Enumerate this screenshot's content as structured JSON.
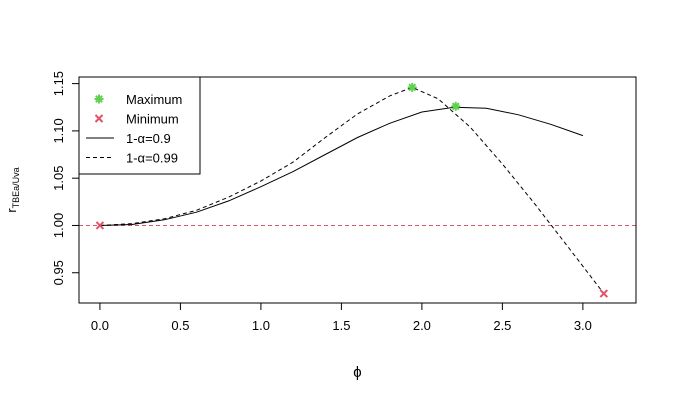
{
  "chart_data": {
    "type": "line",
    "title": "",
    "xlabel": "ϕ",
    "ylabel_main": "r",
    "ylabel_sub": "TBEa/Uva",
    "xlim": [
      -0.13,
      3.33
    ],
    "ylim": [
      0.918,
      1.157
    ],
    "xticks": [
      0.0,
      0.5,
      1.0,
      1.5,
      2.0,
      2.5,
      3.0
    ],
    "xtick_labels": [
      "0.0",
      "0.5",
      "1.0",
      "1.5",
      "2.0",
      "2.5",
      "3.0"
    ],
    "yticks": [
      0.95,
      1.0,
      1.05,
      1.1,
      1.15
    ],
    "ytick_labels": [
      "0.95",
      "1.00",
      "1.05",
      "1.10",
      "1.15"
    ],
    "reference_line": {
      "y": 1.0,
      "color": "#DF536B",
      "style": "dashed"
    },
    "series": [
      {
        "name": "1-α=0.9",
        "style": "solid",
        "color": "#000000",
        "x": [
          0.0,
          0.2,
          0.4,
          0.6,
          0.8,
          1.0,
          1.2,
          1.4,
          1.6,
          1.8,
          2.0,
          2.2,
          2.4,
          2.6,
          2.8,
          3.0
        ],
        "y": [
          1.0,
          1.001,
          1.006,
          1.014,
          1.026,
          1.041,
          1.057,
          1.075,
          1.093,
          1.108,
          1.12,
          1.125,
          1.124,
          1.117,
          1.107,
          1.095
        ]
      },
      {
        "name": "1-α=0.99",
        "style": "dashed",
        "color": "#000000",
        "x": [
          0.0,
          0.2,
          0.4,
          0.6,
          0.8,
          1.0,
          1.2,
          1.4,
          1.6,
          1.8,
          1.94,
          2.1,
          2.3,
          2.5,
          2.7,
          2.9,
          3.13
        ],
        "y": [
          1.0,
          1.002,
          1.007,
          1.016,
          1.03,
          1.047,
          1.067,
          1.093,
          1.118,
          1.137,
          1.146,
          1.134,
          1.104,
          1.065,
          1.023,
          0.979,
          0.928
        ]
      }
    ],
    "markers": {
      "maximum": {
        "name": "Maximum",
        "color": "#61D04F",
        "symbol": "asterisk",
        "points": [
          {
            "x": 1.94,
            "y": 1.146
          },
          {
            "x": 2.21,
            "y": 1.126
          }
        ]
      },
      "minimum": {
        "name": "Minimum",
        "color": "#DF536B",
        "symbol": "cross",
        "points": [
          {
            "x": 0.0,
            "y": 1.0
          },
          {
            "x": 3.13,
            "y": 0.928
          }
        ]
      }
    },
    "legend": {
      "placement": "top-left",
      "entries": [
        {
          "label": "Maximum",
          "kind": "asterisk",
          "color": "#61D04F"
        },
        {
          "label": "Minimum",
          "kind": "cross",
          "color": "#DF536B"
        },
        {
          "label": "1-α=0.9",
          "kind": "solid",
          "color": "#000000"
        },
        {
          "label": "1-α=0.99",
          "kind": "dashed",
          "color": "#000000"
        }
      ]
    },
    "grid": false
  }
}
